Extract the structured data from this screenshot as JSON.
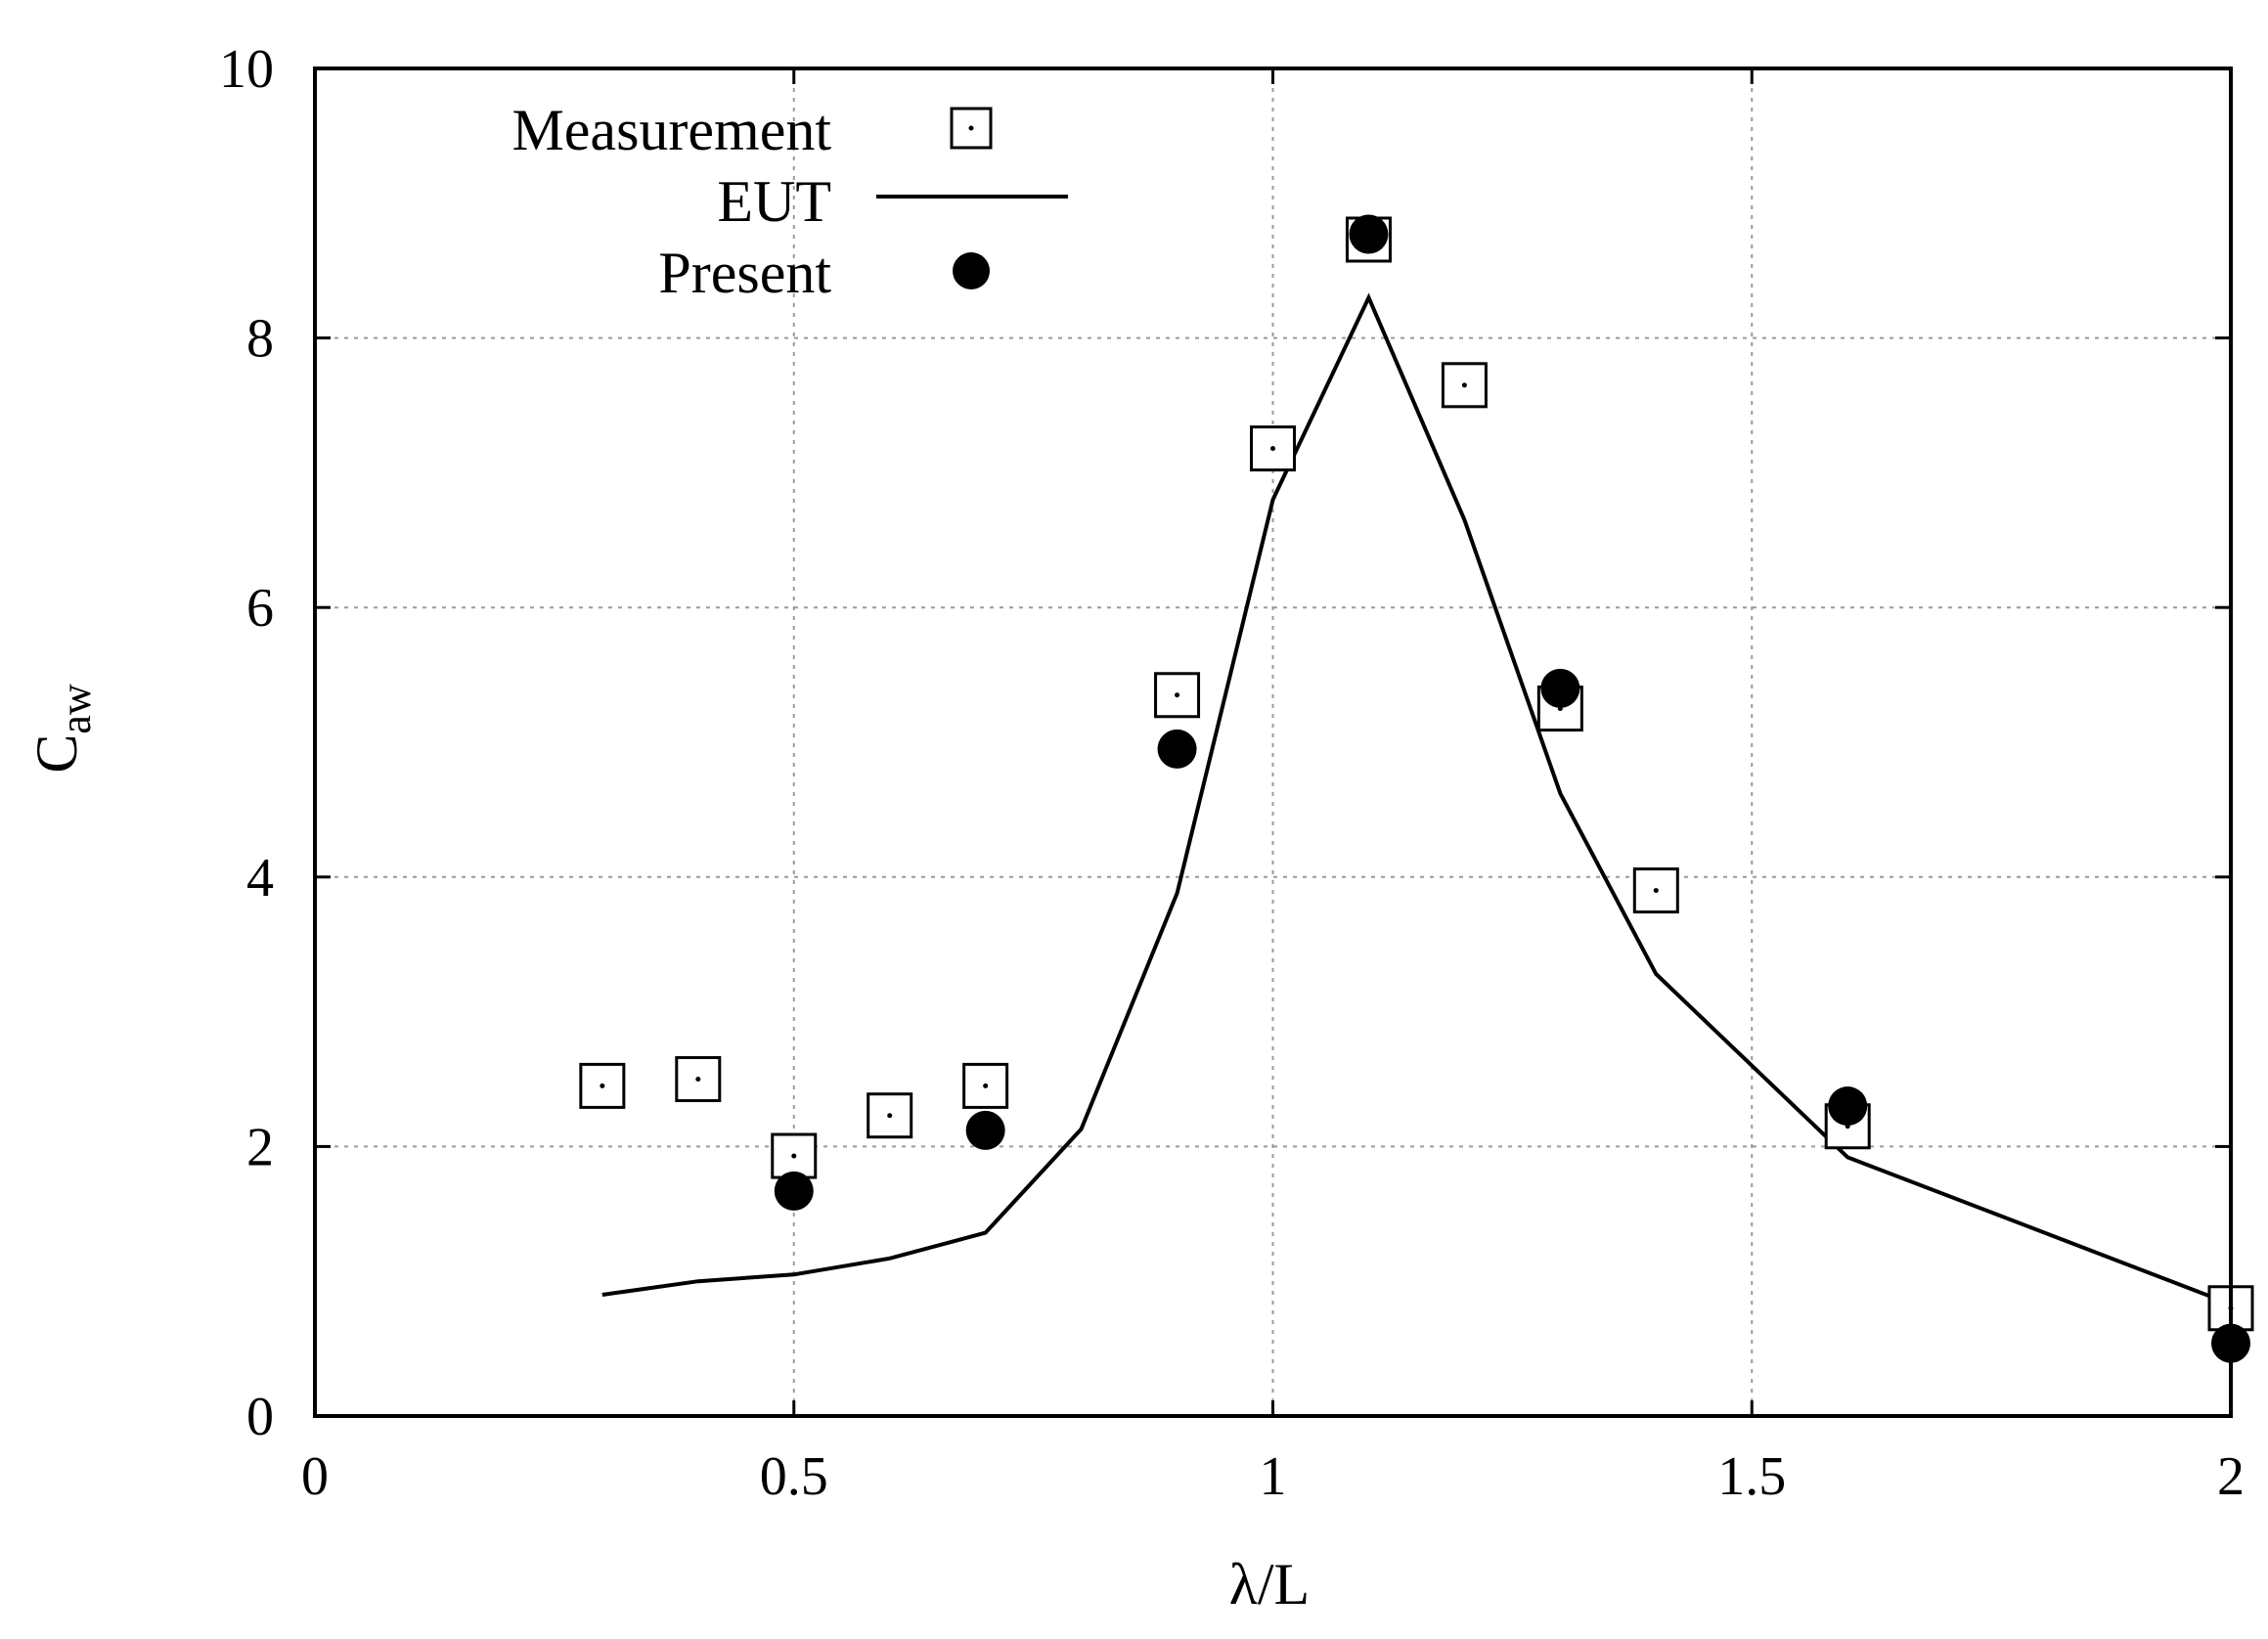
{
  "chart_data": {
    "type": "scatter",
    "title": "",
    "xlabel": "λ/L",
    "ylabel_main": "C",
    "ylabel_sub": "aw",
    "xlim": [
      0,
      2
    ],
    "ylim": [
      0,
      10
    ],
    "xticks": [
      0,
      0.5,
      1,
      1.5,
      2
    ],
    "xtick_labels": [
      "0",
      "0.5",
      "1",
      "1.5",
      "2"
    ],
    "yticks": [
      0,
      2,
      4,
      6,
      8,
      10
    ],
    "ytick_labels": [
      "0",
      "2",
      "4",
      "6",
      "8",
      "10"
    ],
    "grid": true,
    "legend_position": "top-left",
    "series": [
      {
        "name": "Measurement",
        "style": "open-square",
        "x": [
          0.3,
          0.4,
          0.5,
          0.6,
          0.7,
          0.9,
          1.0,
          1.1,
          1.2,
          1.3,
          1.4,
          1.6,
          2.0
        ],
        "y": [
          2.45,
          2.5,
          1.93,
          2.23,
          2.45,
          5.35,
          7.18,
          8.73,
          7.65,
          5.25,
          3.9,
          2.15,
          0.8
        ]
      },
      {
        "name": "EUT",
        "style": "line",
        "x": [
          0.3,
          0.4,
          0.5,
          0.6,
          0.7,
          0.8,
          0.9,
          1.0,
          1.1,
          1.2,
          1.3,
          1.4,
          1.6,
          2.0
        ],
        "y": [
          0.9,
          1.0,
          1.05,
          1.17,
          1.36,
          2.13,
          3.88,
          6.8,
          8.3,
          6.65,
          4.62,
          3.28,
          1.92,
          0.83
        ]
      },
      {
        "name": "Present",
        "style": "filled-circle",
        "x": [
          0.5,
          0.7,
          0.9,
          1.1,
          1.3,
          1.6,
          2.0
        ],
        "y": [
          1.67,
          2.12,
          4.95,
          8.77,
          5.4,
          2.3,
          0.54
        ]
      }
    ]
  }
}
